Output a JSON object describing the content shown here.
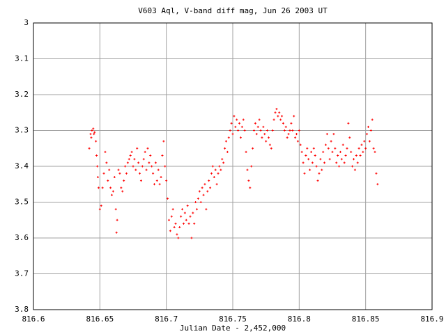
{
  "chart_data": {
    "type": "scatter",
    "title": "V603 Aql, V-band diff mag, Jun 26 2003 UT",
    "x_label": "Julian Date - 2,452,000",
    "xlim": [
      816.6,
      816.9
    ],
    "xticks": [
      816.6,
      816.65,
      816.7,
      816.75,
      816.8,
      816.85,
      816.9
    ],
    "ylim": [
      3.8,
      3
    ],
    "yticks": [
      3,
      3.1,
      3.2,
      3.3,
      3.4,
      3.5,
      3.6,
      3.7,
      3.8
    ],
    "grid": true,
    "color": "#ff0000",
    "x": [
      816.642,
      816.643,
      816.6435,
      816.644,
      816.645,
      816.6455,
      816.646,
      816.647,
      816.6475,
      816.648,
      816.6485,
      816.649,
      816.65,
      816.651,
      816.652,
      816.653,
      816.654,
      816.655,
      816.656,
      816.657,
      816.658,
      816.659,
      816.66,
      816.661,
      816.662,
      816.6625,
      816.663,
      816.664,
      816.665,
      816.666,
      816.667,
      816.668,
      816.669,
      816.67,
      816.671,
      816.672,
      816.673,
      816.674,
      816.675,
      816.676,
      816.677,
      816.678,
      816.679,
      816.68,
      816.681,
      816.682,
      816.683,
      816.684,
      816.685,
      816.686,
      816.687,
      816.688,
      816.689,
      816.69,
      816.691,
      816.692,
      816.693,
      816.694,
      816.695,
      816.696,
      816.697,
      816.698,
      816.699,
      816.7,
      816.701,
      816.702,
      816.703,
      816.704,
      816.705,
      816.706,
      816.707,
      816.708,
      816.709,
      816.71,
      816.711,
      816.712,
      816.713,
      816.714,
      816.715,
      816.716,
      816.717,
      816.718,
      816.719,
      816.72,
      816.721,
      816.722,
      816.723,
      816.724,
      816.725,
      816.726,
      816.727,
      816.728,
      816.729,
      816.73,
      816.731,
      816.732,
      816.733,
      816.734,
      816.735,
      816.736,
      816.737,
      816.738,
      816.739,
      816.74,
      816.741,
      816.742,
      816.743,
      816.744,
      816.745,
      816.746,
      816.747,
      816.748,
      816.749,
      816.75,
      816.751,
      816.752,
      816.753,
      816.754,
      816.755,
      816.756,
      816.757,
      816.758,
      816.759,
      816.76,
      816.761,
      816.762,
      816.763,
      816.764,
      816.765,
      816.766,
      816.767,
      816.768,
      816.769,
      816.77,
      816.771,
      816.772,
      816.773,
      816.774,
      816.775,
      816.776,
      816.777,
      816.778,
      816.779,
      816.78,
      816.781,
      816.782,
      816.783,
      816.784,
      816.785,
      816.786,
      816.787,
      816.788,
      816.789,
      816.79,
      816.791,
      816.792,
      816.793,
      816.794,
      816.795,
      816.796,
      816.797,
      816.798,
      816.799,
      816.8,
      816.801,
      816.802,
      816.803,
      816.804,
      816.805,
      816.806,
      816.807,
      816.808,
      816.809,
      816.81,
      816.811,
      816.812,
      816.813,
      816.814,
      816.815,
      816.816,
      816.817,
      816.818,
      816.819,
      816.82,
      816.821,
      816.822,
      816.823,
      816.824,
      816.825,
      816.826,
      816.827,
      816.828,
      816.829,
      816.83,
      816.831,
      816.832,
      816.833,
      816.834,
      816.835,
      816.836,
      816.837,
      816.838,
      816.839,
      816.84,
      816.841,
      816.842,
      816.843,
      816.844,
      816.845,
      816.846,
      816.847,
      816.848,
      816.849,
      816.85,
      816.851,
      816.852,
      816.853,
      816.854,
      816.855,
      816.856,
      816.857,
      816.858,
      816.859
    ],
    "values": [
      3.35,
      3.31,
      3.32,
      3.3,
      3.295,
      3.31,
      3.305,
      3.33,
      3.37,
      3.4,
      3.43,
      3.46,
      3.52,
      3.51,
      3.46,
      3.42,
      3.36,
      3.39,
      3.44,
      3.41,
      3.46,
      3.48,
      3.47,
      3.43,
      3.52,
      3.585,
      3.55,
      3.41,
      3.42,
      3.46,
      3.47,
      3.44,
      3.4,
      3.42,
      3.39,
      3.38,
      3.37,
      3.36,
      3.4,
      3.38,
      3.41,
      3.35,
      3.39,
      3.42,
      3.44,
      3.4,
      3.38,
      3.36,
      3.41,
      3.35,
      3.39,
      3.37,
      3.4,
      3.42,
      3.45,
      3.39,
      3.44,
      3.41,
      3.45,
      3.43,
      3.37,
      3.33,
      3.4,
      3.44,
      3.49,
      3.55,
      3.58,
      3.54,
      3.52,
      3.57,
      3.56,
      3.59,
      3.6,
      3.57,
      3.54,
      3.52,
      3.56,
      3.53,
      3.55,
      3.51,
      3.56,
      3.54,
      3.6,
      3.53,
      3.56,
      3.5,
      3.52,
      3.49,
      3.47,
      3.5,
      3.46,
      3.48,
      3.45,
      3.52,
      3.47,
      3.44,
      3.46,
      3.42,
      3.4,
      3.43,
      3.41,
      3.45,
      3.42,
      3.4,
      3.41,
      3.38,
      3.39,
      3.35,
      3.33,
      3.36,
      3.32,
      3.3,
      3.28,
      3.31,
      3.26,
      3.29,
      3.27,
      3.3,
      3.28,
      3.32,
      3.29,
      3.27,
      3.3,
      3.36,
      3.41,
      3.44,
      3.46,
      3.4,
      3.35,
      3.3,
      3.28,
      3.31,
      3.29,
      3.27,
      3.3,
      3.32,
      3.29,
      3.31,
      3.33,
      3.3,
      3.32,
      3.34,
      3.35,
      3.3,
      3.27,
      3.25,
      3.24,
      3.26,
      3.25,
      3.27,
      3.26,
      3.28,
      3.3,
      3.29,
      3.32,
      3.31,
      3.3,
      3.28,
      3.3,
      3.26,
      3.32,
      3.31,
      3.33,
      3.3,
      3.34,
      3.36,
      3.39,
      3.42,
      3.37,
      3.35,
      3.38,
      3.41,
      3.36,
      3.39,
      3.35,
      3.37,
      3.4,
      3.44,
      3.42,
      3.38,
      3.41,
      3.36,
      3.39,
      3.34,
      3.31,
      3.35,
      3.38,
      3.33,
      3.36,
      3.31,
      3.35,
      3.39,
      3.37,
      3.4,
      3.36,
      3.38,
      3.34,
      3.39,
      3.37,
      3.35,
      3.28,
      3.32,
      3.36,
      3.4,
      3.38,
      3.41,
      3.37,
      3.39,
      3.35,
      3.37,
      3.34,
      3.36,
      3.33,
      3.35,
      3.31,
      3.29,
      3.33,
      3.3,
      3.27,
      3.35,
      3.36,
      3.42,
      3.45
    ]
  }
}
